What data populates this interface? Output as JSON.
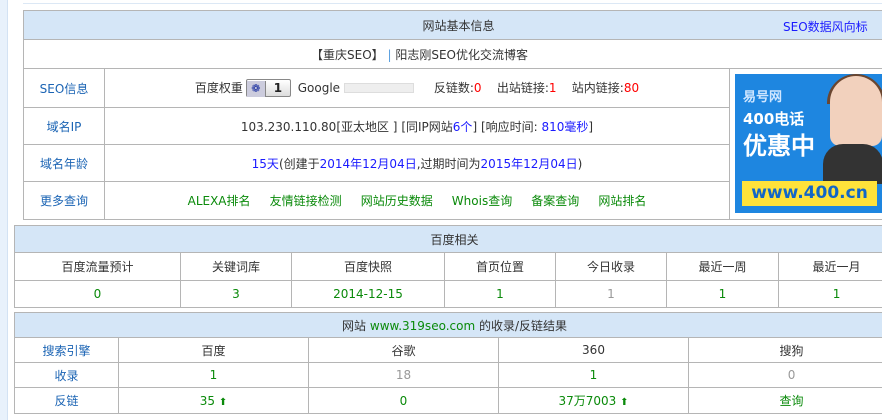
{
  "basic": {
    "title": "网站基本信息",
    "link": "SEO数据风向标",
    "site_title_left": "【重庆SEO】",
    "site_title_sep": "|",
    "site_title_right": "阳志刚SEO优化交流博客",
    "seo": {
      "label": "SEO信息",
      "baidu_weight_label": "百度权重",
      "baidu_weight": "1",
      "google_label": "Google",
      "backlinks_label": "反链数:",
      "backlinks": "0",
      "outlinks_label": "出站链接:",
      "outlinks": "1",
      "inlinks_label": "站内链接:",
      "inlinks": "80"
    },
    "ip": {
      "label": "域名IP",
      "address": "103.230.110.80",
      "region": "[亚太地区 ]",
      "same_ip_prefix": "[同IP网站",
      "same_ip_count": "6个",
      "same_ip_suffix": "]",
      "resp_prefix": "[响应时间:",
      "resp_value": "810毫秒",
      "resp_suffix": "]"
    },
    "age": {
      "label": "域名年龄",
      "days": "15天",
      "created_prefix": "(创建于",
      "created": "2014年12月04日",
      "expire_prefix": ",过期时间为",
      "expire": "2015年12月04日",
      "close": ")"
    },
    "more": {
      "label": "更多查询",
      "links": [
        "ALEXA排名",
        "友情链接检测",
        "网站历史数据",
        "Whois查询",
        "备案查询",
        "网站排名"
      ]
    },
    "ad": {
      "brand": "易号网",
      "line1": "400电话",
      "line2": "优惠中",
      "url": "www.400.cn"
    }
  },
  "baidu": {
    "title": "百度相关",
    "headers": [
      "百度流量预计",
      "关键词库",
      "百度快照",
      "首页位置",
      "今日收录",
      "最近一周",
      "最近一月"
    ],
    "values": [
      "0",
      "3",
      "2014-12-15",
      "1",
      "1",
      "1",
      "1"
    ]
  },
  "index": {
    "title_prefix": "网站",
    "domain": "www.319seo.com",
    "title_suffix": "的收录/反链结果",
    "headers": [
      "搜索引擎",
      "百度",
      "谷歌",
      "360",
      "搜狗"
    ],
    "rows": [
      {
        "label": "收录",
        "values": [
          "1",
          "18",
          "1",
          "0"
        ]
      },
      {
        "label": "反链",
        "values": [
          "35",
          "0",
          "37万7003",
          "查询"
        ]
      }
    ],
    "up_icon": "arrow-up-icon",
    "colors": {
      "header_bg": "#d5e6f7",
      "label": "#1b64b4",
      "green": "#0a8a0a"
    }
  }
}
